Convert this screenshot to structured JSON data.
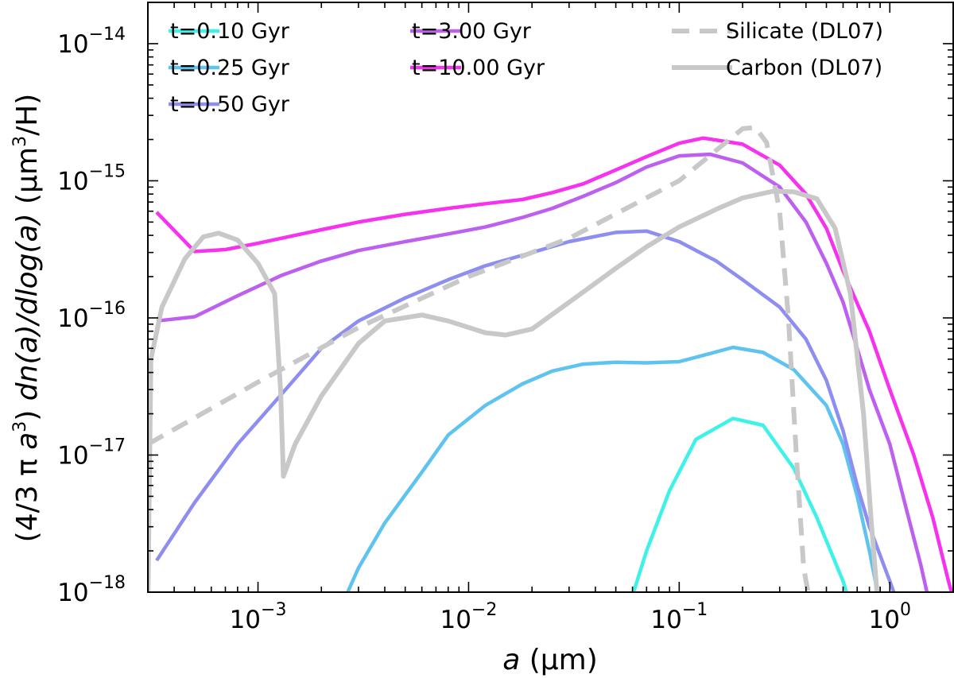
{
  "chart_data": {
    "type": "line",
    "title": "",
    "xlabel_italic": "a",
    "xlabel_unit": "(µm)",
    "ylabel_parts": {
      "open": "(4/3 π ",
      "a": "a",
      "cube": "3",
      "mid": ") ",
      "dn": "dn(a)/dlog(a)",
      "unit_open": " (µm",
      "unit_close": "/H)"
    },
    "xscale": "log",
    "yscale": "log",
    "xlim": [
      0.0003,
      2.0
    ],
    "ylim": [
      1e-18,
      2e-14
    ],
    "x_ticks": [
      {
        "value": 0.001,
        "base": "10",
        "exp": "−3"
      },
      {
        "value": 0.01,
        "base": "10",
        "exp": "−2"
      },
      {
        "value": 0.1,
        "base": "10",
        "exp": "−1"
      },
      {
        "value": 1,
        "base": "10",
        "exp": "0"
      }
    ],
    "y_ticks": [
      {
        "value": 1e-18,
        "base": "10",
        "exp": "−18"
      },
      {
        "value": 1e-17,
        "base": "10",
        "exp": "−17"
      },
      {
        "value": 1e-16,
        "base": "10",
        "exp": "−16"
      },
      {
        "value": 1e-15,
        "base": "10",
        "exp": "−15"
      },
      {
        "value": 1e-14,
        "base": "10",
        "exp": "−14"
      }
    ],
    "series": [
      {
        "name": "t=0.10 Gyr",
        "color": "#3ef2ea",
        "style": "solid",
        "points": [
          [
            0.058,
            8e-19
          ],
          [
            0.07,
            2e-18
          ],
          [
            0.09,
            5.5e-18
          ],
          [
            0.12,
            1.3e-17
          ],
          [
            0.18,
            1.85e-17
          ],
          [
            0.25,
            1.65e-17
          ],
          [
            0.35,
            8e-18
          ],
          [
            0.45,
            3.5e-18
          ],
          [
            0.6,
            1.2e-18
          ],
          [
            0.65,
            8e-19
          ]
        ]
      },
      {
        "name": "t=0.25 Gyr",
        "color": "#5fc3ef",
        "style": "solid",
        "points": [
          [
            0.0025,
            8e-19
          ],
          [
            0.003,
            1.5e-18
          ],
          [
            0.004,
            3.2e-18
          ],
          [
            0.006,
            7.5e-18
          ],
          [
            0.008,
            1.4e-17
          ],
          [
            0.012,
            2.3e-17
          ],
          [
            0.018,
            3.3e-17
          ],
          [
            0.025,
            4.1e-17
          ],
          [
            0.035,
            4.6e-17
          ],
          [
            0.05,
            4.75e-17
          ],
          [
            0.07,
            4.7e-17
          ],
          [
            0.1,
            4.8e-17
          ],
          [
            0.14,
            5.5e-17
          ],
          [
            0.18,
            6.1e-17
          ],
          [
            0.25,
            5.6e-17
          ],
          [
            0.35,
            4.2e-17
          ],
          [
            0.5,
            2.3e-17
          ],
          [
            0.6,
            1.2e-17
          ],
          [
            0.7,
            5e-18
          ],
          [
            0.8,
            2e-18
          ],
          [
            0.9,
            8e-19
          ]
        ]
      },
      {
        "name": "t=0.50 Gyr",
        "color": "#8e8ef0",
        "style": "solid",
        "points": [
          [
            0.00033,
            1.7e-18
          ],
          [
            0.0005,
            4.5e-18
          ],
          [
            0.0008,
            1.2e-17
          ],
          [
            0.0013,
            2.8e-17
          ],
          [
            0.002,
            6e-17
          ],
          [
            0.003,
            9.5e-17
          ],
          [
            0.005,
            1.4e-16
          ],
          [
            0.008,
            1.9e-16
          ],
          [
            0.012,
            2.4e-16
          ],
          [
            0.02,
            3e-16
          ],
          [
            0.03,
            3.6e-16
          ],
          [
            0.05,
            4.2e-16
          ],
          [
            0.07,
            4.3e-16
          ],
          [
            0.1,
            3.6e-16
          ],
          [
            0.15,
            2.6e-16
          ],
          [
            0.2,
            1.9e-16
          ],
          [
            0.3,
            1.2e-16
          ],
          [
            0.4,
            7e-17
          ],
          [
            0.5,
            3.5e-17
          ],
          [
            0.6,
            1.5e-17
          ],
          [
            0.7,
            6e-18
          ],
          [
            0.8,
            3e-18
          ],
          [
            1.0,
            1.2e-18
          ],
          [
            1.1,
            8e-19
          ]
        ]
      },
      {
        "name": "t=3.00 Gyr",
        "color": "#bd60ef",
        "style": "solid",
        "points": [
          [
            0.00033,
            9.5e-17
          ],
          [
            0.0005,
            1.02e-16
          ],
          [
            0.0008,
            1.45e-16
          ],
          [
            0.0013,
            2.05e-16
          ],
          [
            0.002,
            2.6e-16
          ],
          [
            0.003,
            3.1e-16
          ],
          [
            0.005,
            3.6e-16
          ],
          [
            0.008,
            4.1e-16
          ],
          [
            0.012,
            4.6e-16
          ],
          [
            0.018,
            5.4e-16
          ],
          [
            0.025,
            6.3e-16
          ],
          [
            0.035,
            7.7e-16
          ],
          [
            0.05,
            9.7e-16
          ],
          [
            0.07,
            1.26e-15
          ],
          [
            0.1,
            1.52e-15
          ],
          [
            0.14,
            1.56e-15
          ],
          [
            0.2,
            1.35e-15
          ],
          [
            0.3,
            9e-16
          ],
          [
            0.4,
            5e-16
          ],
          [
            0.5,
            2.5e-16
          ],
          [
            0.6,
            1.3e-16
          ],
          [
            0.7,
            6e-17
          ],
          [
            0.8,
            3e-17
          ],
          [
            1.0,
            1.2e-17
          ],
          [
            1.2,
            4e-18
          ],
          [
            1.4,
            1.6e-18
          ],
          [
            1.55,
            8e-19
          ]
        ]
      },
      {
        "name": "t=10.00 Gyr",
        "color": "#f632ee",
        "style": "solid",
        "points": [
          [
            0.00033,
            5.9e-16
          ],
          [
            0.0005,
            3.05e-16
          ],
          [
            0.0007,
            3.15e-16
          ],
          [
            0.001,
            3.5e-16
          ],
          [
            0.0015,
            4e-16
          ],
          [
            0.002,
            4.4e-16
          ],
          [
            0.003,
            5e-16
          ],
          [
            0.005,
            5.7e-16
          ],
          [
            0.008,
            6.3e-16
          ],
          [
            0.012,
            6.8e-16
          ],
          [
            0.018,
            7.3e-16
          ],
          [
            0.025,
            8.2e-16
          ],
          [
            0.035,
            9.5e-16
          ],
          [
            0.05,
            1.2e-15
          ],
          [
            0.07,
            1.5e-15
          ],
          [
            0.1,
            1.88e-15
          ],
          [
            0.13,
            2.05e-15
          ],
          [
            0.2,
            1.85e-15
          ],
          [
            0.3,
            1.3e-15
          ],
          [
            0.4,
            8e-16
          ],
          [
            0.5,
            4.5e-16
          ],
          [
            0.6,
            2.2e-16
          ],
          [
            0.8,
            8e-17
          ],
          [
            1.0,
            3e-17
          ],
          [
            1.3,
            1e-17
          ],
          [
            1.6,
            3.5e-18
          ],
          [
            1.9,
            1.2e-18
          ],
          [
            2.0,
            9e-19
          ]
        ]
      },
      {
        "name": "Silicate (DL07)",
        "color": "#c8c8c8",
        "style": "dashed",
        "points": [
          [
            0.0003,
            1.2e-17
          ],
          [
            0.001,
            3.4e-17
          ],
          [
            0.003,
            8.5e-17
          ],
          [
            0.01,
            2e-16
          ],
          [
            0.03,
            3.8e-16
          ],
          [
            0.1,
            1e-15
          ],
          [
            0.2,
            2.4e-15
          ],
          [
            0.23,
            2.45e-15
          ],
          [
            0.26,
            1.9e-15
          ],
          [
            0.3,
            6e-16
          ],
          [
            0.33,
            1e-16
          ],
          [
            0.36,
            1e-17
          ],
          [
            0.39,
            1.5e-18
          ],
          [
            0.42,
            8e-19
          ]
        ]
      },
      {
        "name": "Carbon (DL07)",
        "color": "#c8c8c8",
        "style": "solid",
        "points": [
          [
            0.0003,
            8e-19
          ],
          [
            0.00031,
            5e-17
          ],
          [
            0.00035,
            1.2e-16
          ],
          [
            0.00045,
            2.7e-16
          ],
          [
            0.00055,
            3.9e-16
          ],
          [
            0.00065,
            4.15e-16
          ],
          [
            0.0008,
            3.7e-16
          ],
          [
            0.001,
            2.5e-16
          ],
          [
            0.0012,
            1.5e-16
          ],
          [
            0.00128,
            3e-17
          ],
          [
            0.00132,
            7e-18
          ],
          [
            0.0015,
            1.2e-17
          ],
          [
            0.002,
            2.7e-17
          ],
          [
            0.003,
            6.5e-17
          ],
          [
            0.004,
            9.5e-17
          ],
          [
            0.006,
            1.05e-16
          ],
          [
            0.008,
            9.5e-17
          ],
          [
            0.012,
            7.8e-17
          ],
          [
            0.015,
            7.5e-17
          ],
          [
            0.02,
            8.3e-17
          ],
          [
            0.03,
            1.3e-16
          ],
          [
            0.05,
            2.3e-16
          ],
          [
            0.07,
            3.3e-16
          ],
          [
            0.1,
            4.6e-16
          ],
          [
            0.15,
            6.2e-16
          ],
          [
            0.2,
            7.5e-16
          ],
          [
            0.28,
            8.4e-16
          ],
          [
            0.35,
            8.3e-16
          ],
          [
            0.45,
            7.4e-16
          ],
          [
            0.55,
            4.5e-16
          ],
          [
            0.65,
            1.5e-16
          ],
          [
            0.75,
            2e-17
          ],
          [
            0.82,
            3e-18
          ],
          [
            0.88,
            8e-19
          ]
        ]
      }
    ],
    "legend_position": "top"
  }
}
